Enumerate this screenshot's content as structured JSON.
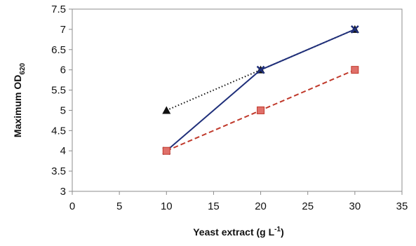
{
  "chart_data": {
    "type": "line",
    "title": "",
    "xlabel": "Yeast extract  (g L",
    "xlabel_sup": "-1",
    "xlabel_close": ")",
    "ylabel": "Maximum OD",
    "ylabel_sub": "620",
    "xlim": [
      0,
      35
    ],
    "ylim": [
      3,
      7.5
    ],
    "xticks": [
      "0",
      "5",
      "10",
      "15",
      "20",
      "25",
      "30",
      "35"
    ],
    "yticks": [
      "3",
      "3.5",
      "4",
      "4.5",
      "5",
      "5.5",
      "6",
      "6.5",
      "7",
      "7.5"
    ],
    "grid": false,
    "legend": "none",
    "series": [
      {
        "x": [
          10,
          20,
          30
        ],
        "y": [
          5,
          6,
          7
        ],
        "color": "#111111",
        "line_style": "dotted",
        "marker": "triangle"
      },
      {
        "x": [
          10,
          20,
          30
        ],
        "y": [
          4,
          6,
          7
        ],
        "color": "#1f2f7a",
        "line_style": "solid",
        "marker": "x"
      },
      {
        "x": [
          10,
          20,
          30
        ],
        "y": [
          4,
          5,
          6
        ],
        "color": "#c0392b",
        "line_style": "dashed",
        "marker": "square",
        "marker_color": "#e0706a"
      }
    ]
  }
}
